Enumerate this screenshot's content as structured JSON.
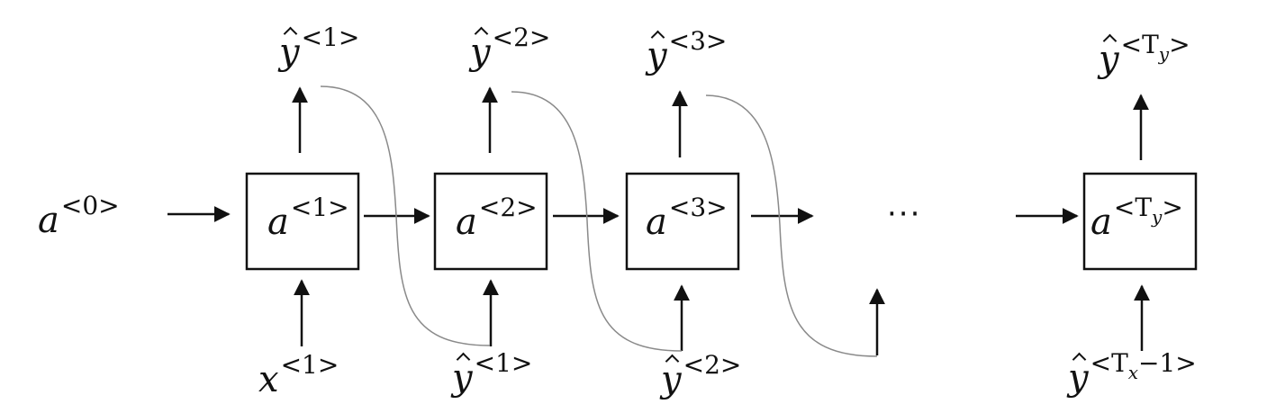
{
  "initial_state": {
    "base": "a",
    "sup": "<0>"
  },
  "cells": [
    {
      "base": "a",
      "sup": "<1>"
    },
    {
      "base": "a",
      "sup": "<2>"
    },
    {
      "base": "a",
      "sup": "<3>"
    },
    {
      "base": "a",
      "sup_pre": "<T",
      "sup_sub": "y",
      "sup_post": ">"
    }
  ],
  "outputs": [
    {
      "base": "y",
      "sup": "<1>"
    },
    {
      "base": "y",
      "sup": "<2>"
    },
    {
      "base": "y",
      "sup": "<3>"
    },
    {
      "base": "y",
      "sup_pre": "<T",
      "sup_sub": "y",
      "sup_post": ">"
    }
  ],
  "inputs": [
    {
      "base": "x",
      "sup": "<1>"
    },
    {
      "base": "y",
      "sup": "<1>"
    },
    {
      "base": "y",
      "sup": "<2>"
    },
    {
      "base": "y",
      "sup_pre": "<T",
      "sup_sub": "x",
      "sup_post": "−1>"
    }
  ],
  "ellipsis": "···",
  "colors": {
    "stroke": "#111111",
    "feedback": "#8a8a8a",
    "background": "#ffffff"
  }
}
